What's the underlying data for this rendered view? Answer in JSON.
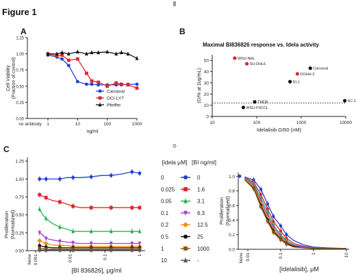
{
  "figure_title": "Figure 1",
  "colors": {
    "blue": "#1f3fd1",
    "red": "#e0242a",
    "black": "#111111",
    "green": "#27b24a",
    "purple": "#a53dd6",
    "orange": "#f08c1c",
    "brown": "#8a5a1b",
    "gray": "#555555"
  },
  "chart_data": [
    {
      "panel": "A",
      "type": "line",
      "xscale": "log",
      "x": [
        1,
        2,
        3,
        5,
        10,
        20,
        30,
        50,
        100,
        200,
        300,
        500,
        1000
      ],
      "x_no_antibody_tick": "no antibody",
      "xticks": [
        "1",
        "10",
        "100",
        "1000"
      ],
      "xlabel": "ng/ml",
      "ylabel": "Cell Viability (Fraction of control)",
      "yticks": [
        "0.00",
        "0.25",
        "0.50",
        "0.75",
        "1.00",
        "1.25"
      ],
      "ylim": [
        0,
        1.25
      ],
      "series": [
        {
          "name": "Carnaval",
          "color": "#1f3fd1",
          "marker": "circle",
          "values": [
            0.98,
            0.95,
            0.92,
            0.82,
            0.57,
            0.53,
            0.53,
            0.52,
            0.52,
            0.52,
            0.52,
            0.53,
            0.53
          ]
        },
        {
          "name": "OCI-LY7",
          "color": "#e0242a",
          "marker": "square",
          "values": [
            1.0,
            0.97,
            0.98,
            0.9,
            0.92,
            0.7,
            0.58,
            0.56,
            0.5,
            0.55,
            0.53,
            0.52,
            0.47
          ]
        },
        {
          "name": "Pfeiffer",
          "color": "#111111",
          "marker": "triangle",
          "values": [
            1.0,
            1.0,
            1.02,
            1.0,
            1.03,
            1.0,
            1.02,
            1.02,
            1.03,
            1.0,
            1.02,
            1.0,
            0.93
          ]
        }
      ]
    },
    {
      "panel": "B",
      "type": "scatter",
      "title": "Maximal BI836826 response vs. Idela activity",
      "xscale": "log",
      "xticks": [
        "10",
        "100",
        "1000",
        "10000"
      ],
      "xlabel": "Idelalisib GI50 (nM)",
      "ylabel": "(GI% at 2ug/mL)",
      "yticks": [
        "0",
        "10",
        "20",
        "30",
        "40",
        "50"
      ],
      "ylim": [
        0,
        55
      ],
      "threshold_y": 12,
      "points": [
        {
          "label": "WSU-NHL",
          "x": 32,
          "y": 52,
          "color": "#e0242a"
        },
        {
          "label": "SU-DHL6",
          "x": 60,
          "y": 47,
          "color": "#e0242a"
        },
        {
          "label": "DOHH-2",
          "x": 820,
          "y": 38,
          "color": "#e0242a"
        },
        {
          "label": "Carnaval",
          "x": 1600,
          "y": 43,
          "color": "#111111"
        },
        {
          "label": "RI-1",
          "x": 560,
          "y": 31,
          "color": "#111111"
        },
        {
          "label": "TMD8",
          "x": 90,
          "y": 13,
          "color": "#111111"
        },
        {
          "label": "SC-1",
          "x": 9500,
          "y": 14,
          "color": "#111111"
        },
        {
          "label": "WSU-FSCCL",
          "x": 50,
          "y": 8,
          "color": "#111111"
        }
      ]
    },
    {
      "panel": "C-left",
      "type": "line",
      "xscale": "log",
      "x": [
        0.0013,
        0.0016,
        0.002,
        0.003,
        0.005,
        0.008,
        0.012,
        0.02,
        0.04,
        0.08,
        0.15,
        0.3,
        0.6,
        1.0
      ],
      "x_none_tick": "None",
      "xticks": [
        "0.001",
        "0.01",
        "0.1",
        "1"
      ],
      "xlabel": "[BI 836826], μg/ml",
      "ylabel": "Proliferation (Normalized)",
      "yticks": [
        "0.00",
        "0.25",
        "0.50",
        "0.75",
        "1.00",
        "1.25"
      ],
      "ylim": [
        0,
        1.3
      ],
      "series": [
        {
          "name": "0",
          "color": "#1f3fd1",
          "marker": "circle",
          "values": [
            1.0,
            1.0,
            1.0,
            1.0,
            1.0,
            1.02,
            1.02,
            1.02,
            1.03,
            1.05,
            1.05,
            1.07,
            1.1,
            1.08
          ]
        },
        {
          "name": "0.025",
          "color": "#e0242a",
          "marker": "square",
          "values": [
            0.78,
            0.76,
            0.74,
            0.7,
            0.68,
            0.65,
            0.62,
            0.6,
            0.6,
            0.6,
            0.6,
            0.6,
            0.6,
            0.6
          ]
        },
        {
          "name": "0.05",
          "color": "#27b24a",
          "marker": "triangle",
          "values": [
            0.58,
            0.5,
            0.45,
            0.38,
            0.33,
            0.3,
            0.27,
            0.27,
            0.27,
            0.27,
            0.27,
            0.27,
            0.27,
            0.27
          ]
        },
        {
          "name": "0.1",
          "color": "#a53dd6",
          "marker": "triangle-down",
          "values": [
            0.25,
            0.22,
            0.17,
            0.15,
            0.13,
            0.12,
            0.11,
            0.1,
            0.1,
            0.1,
            0.1,
            0.1,
            0.1,
            0.1
          ]
        },
        {
          "name": "0.2",
          "color": "#f08c1c",
          "marker": "diamond",
          "values": [
            0.14,
            0.12,
            0.1,
            0.08,
            0.07,
            0.07,
            0.06,
            0.06,
            0.06,
            0.06,
            0.06,
            0.06,
            0.06,
            0.06
          ]
        },
        {
          "name": "0.5",
          "color": "#111111",
          "marker": "circle",
          "values": [
            0.07,
            0.06,
            0.05,
            0.04,
            0.04,
            0.04,
            0.04,
            0.04,
            0.04,
            0.04,
            0.04,
            0.04,
            0.04,
            0.04
          ]
        },
        {
          "name": "1",
          "color": "#8a5a1b",
          "marker": "square",
          "values": [
            0.03,
            0.03,
            0.02,
            0.02,
            0.02,
            0.02,
            0.02,
            0.02,
            0.02,
            0.02,
            0.02,
            0.02,
            0.02,
            0.02
          ]
        },
        {
          "name": "10",
          "color": "#555555",
          "marker": "triangle",
          "values": [
            0.01,
            0.01,
            0.01,
            0.01,
            0.01,
            0.01,
            0.01,
            0.01,
            0.01,
            0.01,
            0.01,
            0.01,
            0.01,
            0.01
          ]
        }
      ]
    },
    {
      "panel": "C-legend",
      "type": "table",
      "headers": [
        "[idela μM]",
        "[BI ng/ml]"
      ],
      "rows": [
        [
          "0",
          "0"
        ],
        [
          "0.025",
          "1.6"
        ],
        [
          "0.05",
          "3.1"
        ],
        [
          "0.1",
          "6.3"
        ],
        [
          "0.2",
          "12.5"
        ],
        [
          "0.5",
          "25"
        ],
        [
          "1",
          "1000"
        ],
        [
          "10",
          "-"
        ]
      ]
    },
    {
      "panel": "C-right",
      "type": "line",
      "xscale": "log",
      "x": [
        0.008,
        0.015,
        0.025,
        0.04,
        0.06,
        0.1,
        0.15,
        0.25,
        0.5,
        1.0,
        2.5,
        10
      ],
      "x_none_tick": "None",
      "xticks": [
        "0.01",
        "0.1",
        "1",
        "10"
      ],
      "xlabel": "[Idelalisib], μM",
      "ylabel": "Proliferation (Normalized)",
      "yticks": [
        "0.0",
        "0.2",
        "0.4",
        "0.6",
        "0.8",
        "1.0"
      ],
      "ylim": [
        0,
        1.05
      ],
      "series": [
        {
          "name": "0",
          "color": "#1f3fd1",
          "values": [
            0.99,
            0.95,
            0.82,
            0.62,
            0.45,
            0.32,
            0.2,
            0.12,
            0.06,
            0.03,
            0.02,
            0.01
          ]
        },
        {
          "name": "1.6",
          "color": "#e0242a",
          "values": [
            0.98,
            0.92,
            0.75,
            0.55,
            0.38,
            0.25,
            0.15,
            0.08,
            0.04,
            0.02,
            0.01,
            0.01
          ]
        },
        {
          "name": "3.1",
          "color": "#27b24a",
          "values": [
            0.97,
            0.9,
            0.7,
            0.5,
            0.33,
            0.2,
            0.12,
            0.06,
            0.03,
            0.02,
            0.01,
            0.01
          ]
        },
        {
          "name": "6.3",
          "color": "#a53dd6",
          "values": [
            0.96,
            0.88,
            0.66,
            0.46,
            0.3,
            0.18,
            0.1,
            0.05,
            0.03,
            0.01,
            0.01,
            0.01
          ]
        },
        {
          "name": "12.5",
          "color": "#f08c1c",
          "values": [
            0.96,
            0.86,
            0.63,
            0.43,
            0.27,
            0.16,
            0.09,
            0.04,
            0.02,
            0.01,
            0.01,
            0.01
          ]
        },
        {
          "name": "25",
          "color": "#111111",
          "values": [
            0.95,
            0.84,
            0.6,
            0.4,
            0.25,
            0.14,
            0.08,
            0.04,
            0.02,
            0.01,
            0.01,
            0.01
          ]
        },
        {
          "name": "1000",
          "color": "#8a5a1b",
          "values": [
            0.95,
            0.83,
            0.58,
            0.38,
            0.23,
            0.13,
            0.07,
            0.03,
            0.02,
            0.01,
            0.01,
            0.01
          ]
        }
      ]
    }
  ]
}
